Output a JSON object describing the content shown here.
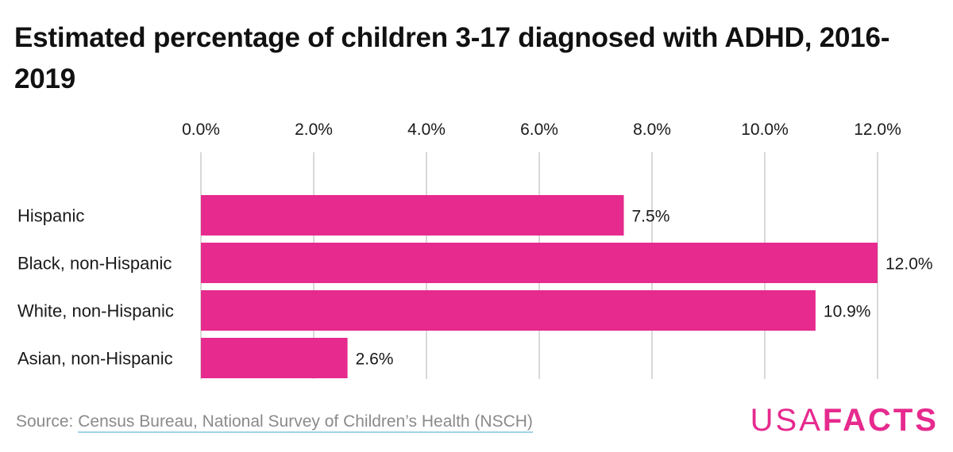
{
  "chart_data": {
    "type": "bar",
    "orientation": "horizontal",
    "title": "Estimated percentage of children 3-17 diagnosed with ADHD, 2016-2019",
    "categories": [
      "Hispanic",
      "Black, non-Hispanic",
      "White, non-Hispanic",
      "Asian, non-Hispanic"
    ],
    "values": [
      7.5,
      12.0,
      10.9,
      2.6
    ],
    "value_labels": [
      "7.5%",
      "12.0%",
      "10.9%",
      "2.6%"
    ],
    "xlim": [
      0,
      12
    ],
    "xticks": [
      0,
      2,
      4,
      6,
      8,
      10,
      12
    ],
    "xtick_labels": [
      "0.0%",
      "2.0%",
      "4.0%",
      "6.0%",
      "8.0%",
      "10.0%",
      "12.0%"
    ],
    "axis_position": "top",
    "grid": true,
    "xlabel": "",
    "ylabel": ""
  },
  "colors": {
    "bar": "#e62a8e",
    "gridline": "#d9d9d9",
    "logo_usa": "#e62a8e",
    "logo_facts": "#e62a8e"
  },
  "footer": {
    "source_prefix": "Source: ",
    "source_text": "Census Bureau, National Survey of Children’s Health (NSCH)"
  },
  "logo": {
    "part1": "USA",
    "part2": "FACTS"
  }
}
